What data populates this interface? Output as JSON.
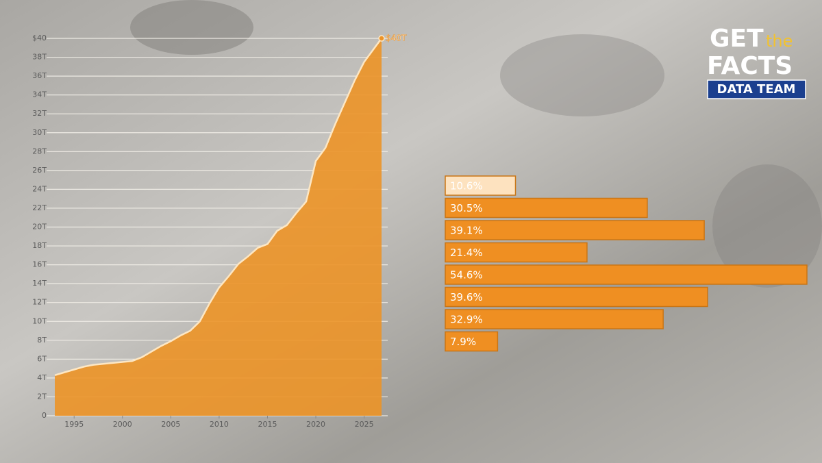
{
  "logo": {
    "get": "GET",
    "the": "the",
    "facts": "FACTS",
    "badge": "DATA TEAM"
  },
  "chart_data": [
    {
      "type": "area",
      "color": "#ec9327",
      "x": [
        1993,
        1994,
        1995,
        1996,
        1997,
        1998,
        1999,
        2000,
        2001,
        2002,
        2003,
        2004,
        2005,
        2006,
        2007,
        2008,
        2009,
        2010,
        2011,
        2012,
        2013,
        2014,
        2015,
        2016,
        2017,
        2018,
        2019,
        2020,
        2021,
        2022,
        2023,
        2024,
        2025,
        2026.8
      ],
      "values": [
        4.3,
        4.6,
        4.9,
        5.2,
        5.4,
        5.5,
        5.6,
        5.7,
        5.8,
        6.2,
        6.8,
        7.4,
        7.9,
        8.5,
        9.0,
        10.0,
        11.9,
        13.6,
        14.8,
        16.1,
        16.9,
        17.8,
        18.2,
        19.6,
        20.2,
        21.5,
        22.7,
        27.0,
        28.4,
        30.9,
        33.2,
        35.5,
        37.5,
        40
      ],
      "annotation": "$40T",
      "xlim": [
        1993,
        2026.8
      ],
      "xticks": [
        1995,
        2000,
        2005,
        2010,
        2015,
        2020,
        2025
      ],
      "ylim": [
        0,
        40
      ],
      "yticks": [
        0,
        {
          "value": 2,
          "label": "2T"
        },
        {
          "value": 4,
          "label": "4T"
        },
        {
          "value": 6,
          "label": "6T"
        },
        {
          "value": 8,
          "label": "8T"
        },
        {
          "value": 10,
          "label": "10T"
        },
        {
          "value": 12,
          "label": "12T"
        },
        {
          "value": 14,
          "label": "14T"
        },
        {
          "value": 16,
          "label": "16T"
        },
        {
          "value": 18,
          "label": "18T"
        },
        {
          "value": 20,
          "label": "20T"
        },
        {
          "value": 22,
          "label": "22T"
        },
        {
          "value": 24,
          "label": "24T"
        },
        {
          "value": 26,
          "label": "26T"
        },
        {
          "value": 28,
          "label": "28T"
        },
        {
          "value": 30,
          "label": "30T"
        },
        {
          "value": 32,
          "label": "32T"
        },
        {
          "value": 34,
          "label": "34T"
        },
        {
          "value": 36,
          "label": "36T"
        },
        {
          "value": 38,
          "label": "38T"
        },
        {
          "value": 40,
          "label": "$40"
        }
      ],
      "grid": true
    },
    {
      "type": "hbar",
      "color": "#ef8f22",
      "highlight_color": "#fde2bf",
      "values": [
        10.6,
        30.5,
        39.1,
        21.4,
        54.6,
        39.6,
        32.9,
        7.9
      ],
      "value_labels": [
        "10.6%",
        "30.5%",
        "39.1%",
        "21.4%",
        "54.6%",
        "39.6%",
        "32.9%",
        "7.9%"
      ]
    }
  ]
}
